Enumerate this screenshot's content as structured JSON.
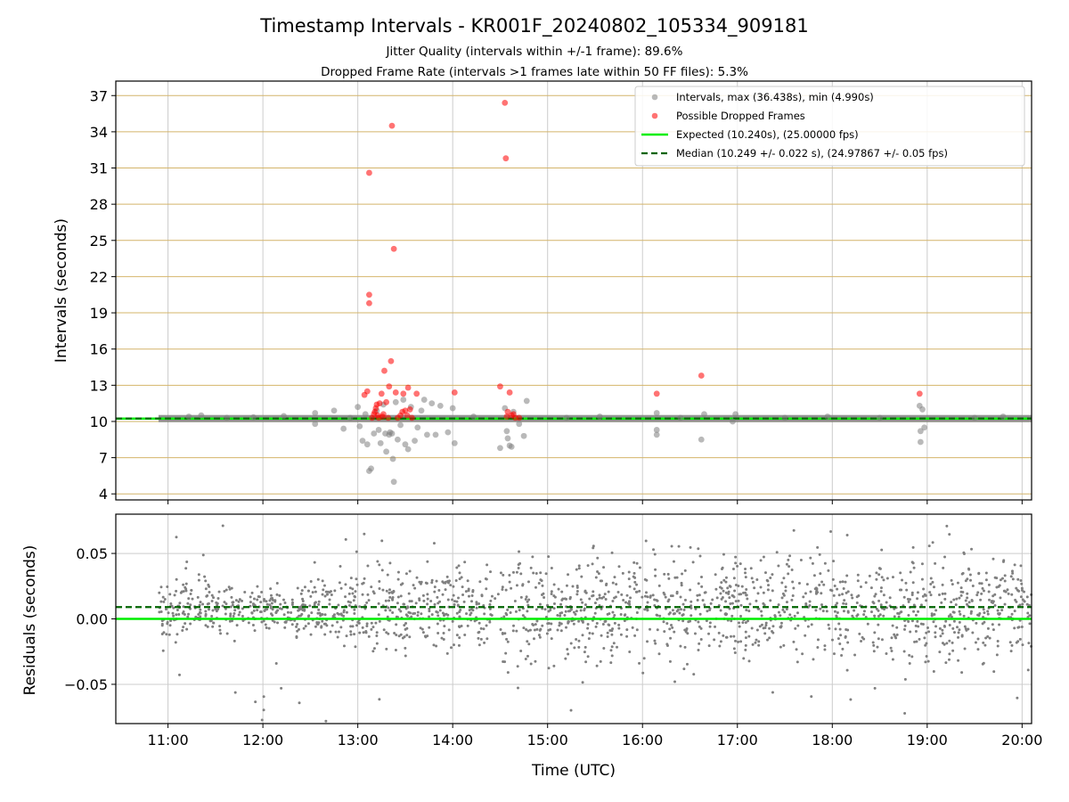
{
  "header": {
    "title": "Timestamp Intervals - KR001F_20240802_105334_909181",
    "subtitle1": "Jitter Quality (intervals within +/-1 frame): 89.6%",
    "subtitle2": "Dropped Frame Rate (intervals >1 frames late within 50 FF files): 5.3%"
  },
  "colors": {
    "intervals": "#808080",
    "dropped": "#ff0000",
    "expected": "#00ee00",
    "median": "#006400",
    "hgrid": "#d4b46a",
    "vgrid": "#cccccc"
  },
  "chart_data": [
    {
      "type": "scatter",
      "ylabel": "Intervals (seconds)",
      "yticks": [
        4,
        7,
        10,
        13,
        16,
        19,
        22,
        25,
        28,
        31,
        34,
        37
      ],
      "ylim": [
        3.5,
        38.2
      ],
      "xlim": [
        10.45,
        20.1
      ],
      "grid": true,
      "legend_position": "top-right",
      "legend": [
        "Intervals, max (36.438s), min (4.990s)",
        "Possible Dropped Frames",
        "Expected (10.240s), (25.00000 fps)",
        "Median (10.249 +/- 0.022 s), (24.97867 +/- 0.05 fps)"
      ],
      "expected": 10.24,
      "median": 10.249,
      "series": [
        {
          "name": "Intervals, max (36.438s), min (4.990s)",
          "band": {
            "x_start": 10.9,
            "x_end": 20.1,
            "y": 10.24
          },
          "points": [
            [
              11.22,
              10.4
            ],
            [
              11.35,
              10.5
            ],
            [
              11.62,
              10.3
            ],
            [
              11.9,
              10.35
            ],
            [
              12.22,
              10.45
            ],
            [
              12.55,
              10.7
            ],
            [
              12.55,
              9.8
            ],
            [
              12.75,
              10.9
            ],
            [
              12.85,
              9.4
            ],
            [
              12.92,
              10.3
            ],
            [
              13.0,
              11.2
            ],
            [
              13.02,
              9.6
            ],
            [
              13.05,
              8.4
            ],
            [
              13.08,
              10.6
            ],
            [
              13.1,
              8.1
            ],
            [
              13.12,
              5.9
            ],
            [
              13.14,
              6.1
            ],
            [
              13.17,
              9.0
            ],
            [
              13.2,
              10.9
            ],
            [
              13.22,
              9.3
            ],
            [
              13.24,
              8.2
            ],
            [
              13.27,
              11.4
            ],
            [
              13.29,
              9.0
            ],
            [
              13.3,
              7.5
            ],
            [
              13.33,
              8.9
            ],
            [
              13.34,
              9.1
            ],
            [
              13.36,
              9.0
            ],
            [
              13.37,
              6.9
            ],
            [
              13.38,
              5.0
            ],
            [
              13.4,
              11.6
            ],
            [
              13.42,
              8.5
            ],
            [
              13.45,
              9.7
            ],
            [
              13.48,
              11.8
            ],
            [
              13.5,
              8.1
            ],
            [
              13.53,
              7.7
            ],
            [
              13.56,
              11.2
            ],
            [
              13.6,
              8.4
            ],
            [
              13.63,
              9.5
            ],
            [
              13.67,
              10.9
            ],
            [
              13.7,
              11.8
            ],
            [
              13.73,
              8.9
            ],
            [
              13.78,
              11.5
            ],
            [
              13.82,
              8.9
            ],
            [
              13.87,
              11.3
            ],
            [
              13.95,
              9.1
            ],
            [
              14.0,
              11.1
            ],
            [
              14.02,
              8.2
            ],
            [
              14.22,
              10.4
            ],
            [
              14.5,
              7.8
            ],
            [
              14.55,
              11.1
            ],
            [
              14.57,
              9.2
            ],
            [
              14.58,
              8.6
            ],
            [
              14.6,
              8.0
            ],
            [
              14.62,
              7.9
            ],
            [
              14.64,
              10.8
            ],
            [
              14.7,
              9.8
            ],
            [
              14.75,
              8.8
            ],
            [
              14.78,
              11.7
            ],
            [
              15.2,
              10.3
            ],
            [
              15.55,
              10.4
            ],
            [
              16.15,
              10.7
            ],
            [
              16.15,
              9.3
            ],
            [
              16.15,
              8.9
            ],
            [
              16.4,
              10.3
            ],
            [
              16.62,
              8.5
            ],
            [
              16.65,
              10.6
            ],
            [
              16.95,
              10.0
            ],
            [
              16.98,
              10.6
            ],
            [
              17.5,
              10.3
            ],
            [
              17.95,
              10.4
            ],
            [
              18.5,
              10.3
            ],
            [
              18.92,
              11.3
            ],
            [
              18.93,
              9.2
            ],
            [
              18.93,
              8.3
            ],
            [
              18.95,
              11.0
            ],
            [
              18.97,
              9.5
            ],
            [
              19.5,
              10.3
            ],
            [
              19.8,
              10.4
            ]
          ]
        },
        {
          "name": "Possible Dropped Frames",
          "points": [
            [
              13.07,
              12.2
            ],
            [
              13.1,
              12.5
            ],
            [
              13.12,
              30.6
            ],
            [
              13.12,
              20.5
            ],
            [
              13.12,
              19.8
            ],
            [
              13.15,
              10.3
            ],
            [
              13.17,
              10.6
            ],
            [
              13.18,
              10.8
            ],
            [
              13.19,
              11.1
            ],
            [
              13.2,
              11.4
            ],
            [
              13.21,
              10.5
            ],
            [
              13.22,
              10.3
            ],
            [
              13.23,
              11.5
            ],
            [
              13.25,
              12.3
            ],
            [
              13.26,
              10.4
            ],
            [
              13.27,
              10.6
            ],
            [
              13.28,
              14.2
            ],
            [
              13.3,
              11.6
            ],
            [
              13.32,
              10.3
            ],
            [
              13.33,
              12.9
            ],
            [
              13.35,
              15.0
            ],
            [
              13.36,
              34.5
            ],
            [
              13.38,
              24.3
            ],
            [
              13.4,
              12.4
            ],
            [
              13.42,
              10.3
            ],
            [
              13.45,
              10.5
            ],
            [
              13.47,
              10.8
            ],
            [
              13.48,
              12.3
            ],
            [
              13.5,
              10.9
            ],
            [
              13.52,
              10.5
            ],
            [
              13.53,
              12.8
            ],
            [
              13.55,
              11.0
            ],
            [
              13.57,
              10.3
            ],
            [
              13.62,
              12.3
            ],
            [
              14.02,
              12.4
            ],
            [
              14.5,
              12.9
            ],
            [
              14.55,
              36.4
            ],
            [
              14.56,
              31.8
            ],
            [
              14.57,
              10.4
            ],
            [
              14.58,
              10.8
            ],
            [
              14.6,
              12.4
            ],
            [
              14.62,
              10.5
            ],
            [
              14.64,
              10.6
            ],
            [
              14.66,
              10.3
            ],
            [
              14.7,
              10.3
            ],
            [
              16.15,
              12.3
            ],
            [
              16.62,
              13.8
            ],
            [
              18.92,
              12.3
            ]
          ]
        }
      ]
    },
    {
      "type": "scatter",
      "xlabel": "Time (UTC)",
      "ylabel": "Residuals (seconds)",
      "yticks": [
        "0.05",
        "0.00",
        "−0.05"
      ],
      "ytick_values": [
        0.05,
        0.0,
        -0.05
      ],
      "ylim": [
        -0.08,
        0.08
      ],
      "xlim": [
        10.45,
        20.1
      ],
      "xticks": [
        "11:00",
        "12:00",
        "13:00",
        "14:00",
        "15:00",
        "16:00",
        "17:00",
        "18:00",
        "19:00",
        "20:00"
      ],
      "xtick_values": [
        11,
        12,
        13,
        14,
        15,
        16,
        17,
        18,
        19,
        20
      ],
      "grid": true,
      "expected": 0.0,
      "median": 0.009,
      "residual_spread": {
        "x_start": 10.9,
        "x_end": 20.1,
        "center": 0.008,
        "min": -0.08,
        "max": 0.075
      }
    }
  ]
}
